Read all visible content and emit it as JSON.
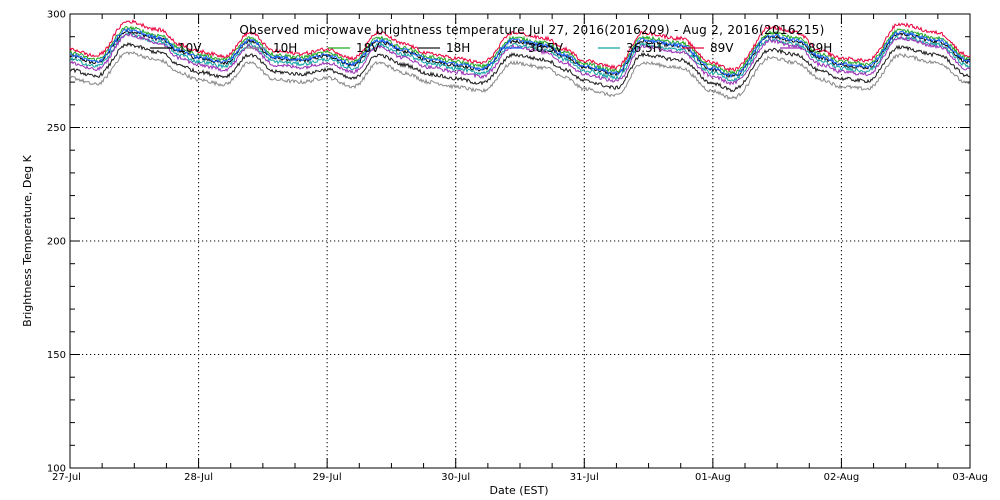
{
  "chart_data": {
    "type": "line",
    "title": "Observed microwave brightness temperature Jul 27, 2016(2016209) - Aug  2, 2016(2016215)",
    "xlabel": "Date (EST)",
    "ylabel": "Brightness Temperature, Deg K",
    "ylim": [
      100,
      300
    ],
    "xlim": [
      "2016-07-27",
      "2016-08-03"
    ],
    "x_ticks": [
      "27-Jul",
      "28-Jul",
      "29-Jul",
      "30-Jul",
      "31-Jul",
      "01-Aug",
      "02-Aug",
      "03-Aug"
    ],
    "y_ticks": [
      "100",
      "150",
      "200",
      "250",
      "300"
    ],
    "grid": true,
    "legend_position": "top",
    "base_profile": {
      "x_days": [
        0,
        0.2,
        0.45,
        0.7,
        0.85,
        1.0,
        1.2,
        1.4,
        1.6,
        1.8,
        2.0,
        2.2,
        2.4,
        2.6,
        2.8,
        3.0,
        3.2,
        3.45,
        3.7,
        3.85,
        4.0,
        4.25,
        4.45,
        4.75,
        5.0,
        5.15,
        5.45,
        5.65,
        5.85,
        6.0,
        6.2,
        6.45,
        6.75,
        7.0
      ],
      "values": [
        281,
        278,
        291,
        288,
        283,
        280,
        278,
        287,
        280,
        279,
        281,
        277,
        287,
        283,
        279,
        277,
        275,
        287,
        285,
        281,
        276,
        273,
        287,
        285,
        275,
        272,
        289,
        287,
        280,
        277,
        276,
        290,
        287,
        278
      ]
    },
    "series": [
      {
        "name": "10V",
        "color": "#000000",
        "offset": 0.5
      },
      {
        "name": "10H",
        "color": "#888888",
        "offset": -9
      },
      {
        "name": "18V",
        "color": "#22aa22",
        "offset": 2
      },
      {
        "name": "18H",
        "color": "#1a1a1a",
        "offset": -5.5
      },
      {
        "name": "36.5V",
        "color": "#1e66ff",
        "offset": 1
      },
      {
        "name": "36.5H",
        "color": "#13a3a3",
        "offset": -1
      },
      {
        "name": "89V",
        "color": "#e8003c",
        "offset": 3.5
      },
      {
        "name": "89H",
        "color": "#9b2fb5",
        "offset": -2.5
      }
    ]
  }
}
